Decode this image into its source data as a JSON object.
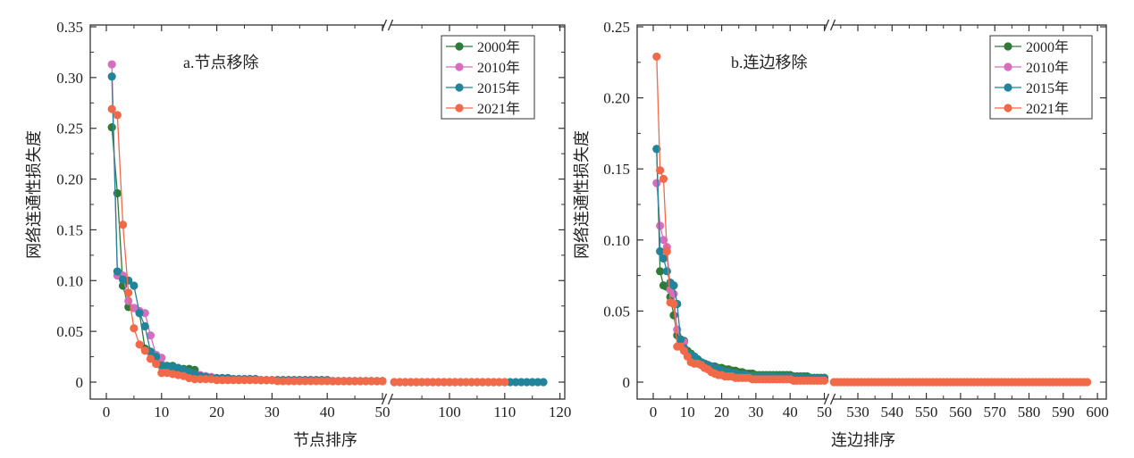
{
  "chart_data": [
    {
      "type": "line",
      "panel": "a",
      "annotation": "a.节点移除",
      "xlabel": "节点排序",
      "ylabel": "网络连通性损失度",
      "ylim": [
        0,
        0.35
      ],
      "x_segments": [
        [
          0,
          50
        ],
        [
          90,
          120
        ]
      ],
      "x_break": true,
      "xticks": [
        0,
        10,
        20,
        30,
        40,
        50,
        100,
        110,
        120
      ],
      "xtick_labels": [
        "0",
        "10",
        "20",
        "30",
        "40",
        "50",
        "100",
        "110",
        "120"
      ],
      "yticks": [
        0,
        0.05,
        0.1,
        0.15,
        0.2,
        0.25,
        0.3,
        0.35
      ],
      "ytick_labels": [
        "0",
        "0.05",
        "0.10",
        "0.15",
        "0.20",
        "0.25",
        "0.30",
        "0.35"
      ],
      "grid": false,
      "legend_position": "top-right",
      "series": [
        {
          "name": "2000年",
          "color": "#2e7a36",
          "x_start": 1,
          "values": [
            0.251,
            0.186,
            0.095,
            0.074,
            0.073,
            0.068,
            0.033,
            0.03,
            0.025,
            0.017,
            0.016,
            0.016,
            0.014,
            0.013,
            0.013,
            0.012,
            0.006,
            0.005,
            0.005,
            0.004,
            0.004,
            0.004,
            0.003,
            0.003,
            0.003,
            0.003,
            0.003,
            0.002,
            0.002,
            0.002,
            0.002,
            0.002,
            0.002,
            0.002,
            0.002,
            0.002,
            0.002,
            0.002,
            0.002,
            0.002,
            0.001,
            0.001,
            0.001,
            0.001,
            0.001,
            0.001,
            0.001,
            0.001,
            0.001,
            0.001
          ]
        },
        {
          "name": "2010年",
          "color": "#d46fbf",
          "x_start": 1,
          "values": [
            0.313,
            0.105,
            0.105,
            0.08,
            0.073,
            0.07,
            0.068,
            0.046,
            0.027,
            0.024,
            0.015,
            0.013,
            0.012,
            0.01,
            0.009,
            0.008,
            0.007,
            0.006,
            0.005,
            0.004,
            0.004,
            0.004,
            0.003,
            0.003,
            0.003,
            0.003,
            0.003,
            0.002,
            0.002,
            0.002,
            0.002,
            0.002,
            0.002,
            0.002,
            0.002,
            0.002,
            0.002,
            0.002,
            0.002,
            0.002,
            0.001,
            0.001,
            0.001,
            0.001,
            0.001,
            0.001,
            0.001,
            0.001,
            0.001,
            0.001
          ]
        },
        {
          "name": "2015年",
          "color": "#22849a",
          "x_start": 1,
          "values": [
            0.301,
            0.109,
            0.101,
            0.1,
            0.095,
            0.068,
            0.055,
            0.03,
            0.025,
            0.016,
            0.016,
            0.015,
            0.014,
            0.012,
            0.01,
            0.008,
            0.006,
            0.005,
            0.004,
            0.004,
            0.004,
            0.004,
            0.003,
            0.003,
            0.003,
            0.003,
            0.003,
            0.002,
            0.002,
            0.002,
            0.002,
            0.002,
            0.002,
            0.002,
            0.002,
            0.002,
            0.002,
            0.002,
            0.002,
            0.002,
            0.001,
            0.001,
            0.001,
            0.001,
            0.001,
            0.001,
            0.001,
            0.001,
            0.001,
            0.001
          ],
          "tail": {
            "from": 90,
            "to": 117,
            "value": 0
          }
        },
        {
          "name": "2021年",
          "color": "#f06a4a",
          "x_start": 1,
          "values": [
            0.269,
            0.263,
            0.155,
            0.088,
            0.053,
            0.037,
            0.031,
            0.023,
            0.018,
            0.009,
            0.009,
            0.008,
            0.007,
            0.006,
            0.004,
            0.003,
            0.003,
            0.003,
            0.003,
            0.002,
            0.002,
            0.002,
            0.002,
            0.002,
            0.002,
            0.002,
            0.002,
            0.002,
            0.002,
            0.002,
            0.001,
            0.001,
            0.001,
            0.001,
            0.001,
            0.001,
            0.001,
            0.001,
            0.001,
            0.001,
            0.001,
            0.001,
            0.001,
            0.001,
            0.001,
            0.001,
            0.001,
            0.001,
            0.001,
            0.001
          ],
          "tail": {
            "from": 90,
            "to": 110,
            "value": 0
          }
        }
      ]
    },
    {
      "type": "line",
      "panel": "b",
      "annotation": "b.连边移除",
      "xlabel": "连边排序",
      "ylabel": "网络连通性损失度",
      "ylim": [
        0,
        0.25
      ],
      "x_segments": [
        [
          0,
          50
        ],
        [
          523,
          600
        ]
      ],
      "x_break": true,
      "xticks": [
        0,
        10,
        20,
        30,
        40,
        50,
        530,
        540,
        550,
        560,
        570,
        580,
        590,
        600
      ],
      "xtick_labels": [
        "0",
        "10",
        "20",
        "30",
        "40",
        "50",
        "530",
        "540",
        "550",
        "560",
        "570",
        "580",
        "590",
        "600"
      ],
      "yticks": [
        0,
        0.05,
        0.1,
        0.15,
        0.2,
        0.25
      ],
      "ytick_labels": [
        "0",
        "0.05",
        "0.10",
        "0.15",
        "0.20",
        "0.25"
      ],
      "grid": false,
      "legend_position": "top-right",
      "series": [
        {
          "name": "2000年",
          "color": "#2e7a36",
          "x_start": 1,
          "values": [
            0.164,
            0.078,
            0.068,
            0.067,
            0.06,
            0.047,
            0.033,
            0.03,
            0.029,
            0.022,
            0.02,
            0.018,
            0.016,
            0.014,
            0.013,
            0.012,
            0.011,
            0.011,
            0.01,
            0.01,
            0.009,
            0.009,
            0.008,
            0.008,
            0.007,
            0.007,
            0.006,
            0.006,
            0.006,
            0.005,
            0.005,
            0.005,
            0.005,
            0.005,
            0.005,
            0.005,
            0.005,
            0.005,
            0.005,
            0.005,
            0.004,
            0.004,
            0.004,
            0.004,
            0.004,
            0.003,
            0.003,
            0.003,
            0.003,
            0.003
          ]
        },
        {
          "name": "2010年",
          "color": "#d46fbf",
          "x_start": 1,
          "values": [
            0.14,
            0.11,
            0.1,
            0.095,
            0.065,
            0.062,
            0.037,
            0.03,
            0.028,
            0.02,
            0.018,
            0.016,
            0.015,
            0.014,
            0.013,
            0.012,
            0.011,
            0.01,
            0.009,
            0.008,
            0.007,
            0.007,
            0.006,
            0.006,
            0.005,
            0.005,
            0.005,
            0.004,
            0.004,
            0.004,
            0.004,
            0.004,
            0.004,
            0.004,
            0.004,
            0.003,
            0.003,
            0.003,
            0.003,
            0.003,
            0.003,
            0.003,
            0.003,
            0.002,
            0.002,
            0.002,
            0.002,
            0.002,
            0.002,
            0.002
          ]
        },
        {
          "name": "2015年",
          "color": "#22849a",
          "x_start": 1,
          "values": [
            0.164,
            0.092,
            0.087,
            0.078,
            0.07,
            0.068,
            0.055,
            0.03,
            0.024,
            0.02,
            0.019,
            0.018,
            0.016,
            0.014,
            0.013,
            0.012,
            0.011,
            0.01,
            0.009,
            0.008,
            0.007,
            0.007,
            0.006,
            0.006,
            0.005,
            0.005,
            0.005,
            0.004,
            0.004,
            0.004,
            0.004,
            0.004,
            0.004,
            0.004,
            0.004,
            0.004,
            0.004,
            0.004,
            0.004,
            0.004,
            0.003,
            0.003,
            0.003,
            0.003,
            0.003,
            0.003,
            0.003,
            0.003,
            0.003,
            0.003
          ]
        },
        {
          "name": "2021年",
          "color": "#f06a4a",
          "x_start": 1,
          "values": [
            0.229,
            0.149,
            0.143,
            0.092,
            0.056,
            0.055,
            0.025,
            0.025,
            0.022,
            0.018,
            0.014,
            0.013,
            0.013,
            0.012,
            0.01,
            0.009,
            0.007,
            0.006,
            0.005,
            0.005,
            0.004,
            0.004,
            0.004,
            0.003,
            0.003,
            0.003,
            0.003,
            0.003,
            0.002,
            0.002,
            0.002,
            0.002,
            0.002,
            0.002,
            0.002,
            0.002,
            0.002,
            0.002,
            0.002,
            0.002,
            0.001,
            0.001,
            0.001,
            0.001,
            0.001,
            0.001,
            0.001,
            0.001,
            0.001,
            0.001
          ],
          "tail": {
            "from": 523,
            "to": 597,
            "value": 0
          }
        }
      ]
    }
  ]
}
